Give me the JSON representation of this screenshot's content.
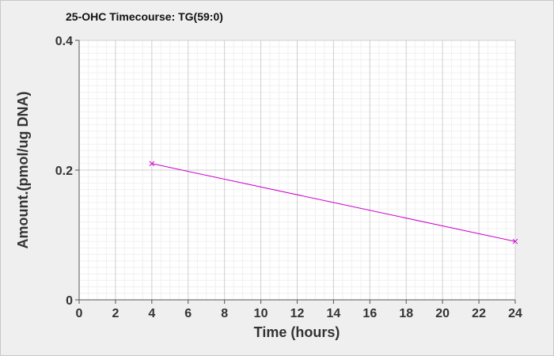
{
  "chart_data": {
    "type": "line",
    "title": "25-OHC Timecourse: TG(59:0)",
    "xlabel": "Time (hours)",
    "ylabel": "Amount.(pmol/ug DNA)",
    "xlim": [
      0,
      24
    ],
    "ylim": [
      0,
      0.4
    ],
    "x_ticks": [
      "0",
      "2",
      "4",
      "6",
      "8",
      "10",
      "12",
      "14",
      "16",
      "18",
      "20",
      "22",
      "24"
    ],
    "y_ticks": [
      "0",
      "0.2",
      "0.4"
    ],
    "grid": true,
    "legend": "none",
    "series": [
      {
        "color": "#cc00cc",
        "marker": "x",
        "x": [
          4,
          24
        ],
        "y": [
          0.21,
          0.09
        ]
      }
    ]
  }
}
